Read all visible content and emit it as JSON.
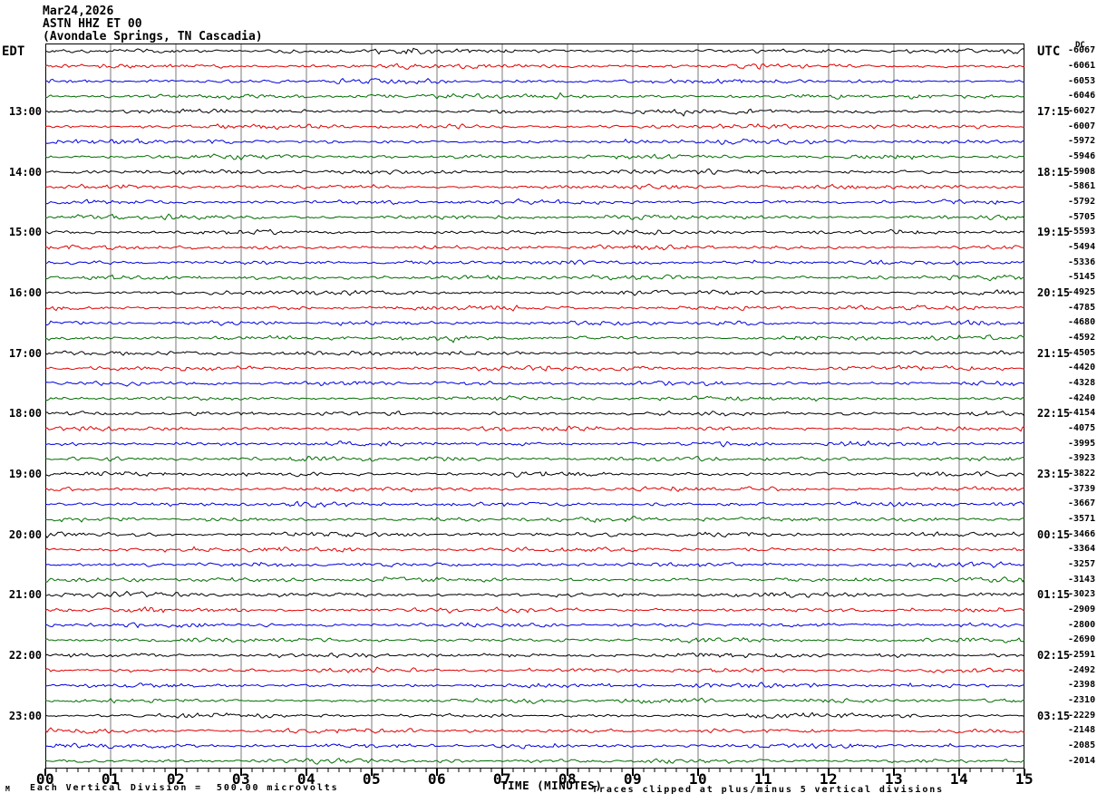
{
  "title": {
    "line1": "Mar24,2026",
    "line2": "ASTN HHZ ET 00",
    "line3": "(Avondale Springs, TN Cascadia)"
  },
  "axes": {
    "left_header": "EDT",
    "right_header": "UTC",
    "dc_header": "DC",
    "x_title": "TIME (MINUTES)",
    "x_ticks": [
      "00",
      "01",
      "02",
      "03",
      "04",
      "05",
      "06",
      "07",
      "08",
      "09",
      "10",
      "11",
      "12",
      "13",
      "14",
      "15"
    ]
  },
  "footer": {
    "watermark": "M",
    "scale_note": "Each Vertical Division =  500.00 microvolts",
    "clip_note": "Traces clipped at plus/minus 5 vertical divisions"
  },
  "colors": {
    "black": "#000000",
    "red": "#e00000",
    "blue": "#0000dd",
    "green": "#006e00",
    "grid": "#7a7a7a",
    "border": "#000000"
  },
  "chart_data": {
    "type": "line",
    "title": "ASTN HHZ ET 00 (Avondale Springs, TN Cascadia) helicorder seismogram, Mar24,2026",
    "xlabel": "TIME (MINUTES)",
    "x_range_minutes": [
      0,
      15
    ],
    "minutes_per_line": 15,
    "vertical_division_microvolts": 500.0,
    "clip_divisions": 5,
    "rows": [
      {
        "edt": "",
        "utc": "",
        "color": "black",
        "dc": -6067
      },
      {
        "edt": "",
        "utc": "",
        "color": "red",
        "dc": -6061
      },
      {
        "edt": "",
        "utc": "",
        "color": "blue",
        "dc": -6053
      },
      {
        "edt": "",
        "utc": "",
        "color": "green",
        "dc": -6046
      },
      {
        "edt": "13:00",
        "utc": "17:15",
        "color": "black",
        "dc": -6027
      },
      {
        "edt": "",
        "utc": "",
        "color": "red",
        "dc": -6007
      },
      {
        "edt": "",
        "utc": "",
        "color": "blue",
        "dc": -5972
      },
      {
        "edt": "",
        "utc": "",
        "color": "green",
        "dc": -5946
      },
      {
        "edt": "14:00",
        "utc": "18:15",
        "color": "black",
        "dc": -5908
      },
      {
        "edt": "",
        "utc": "",
        "color": "red",
        "dc": -5861
      },
      {
        "edt": "",
        "utc": "",
        "color": "blue",
        "dc": -5792
      },
      {
        "edt": "",
        "utc": "",
        "color": "green",
        "dc": -5705
      },
      {
        "edt": "15:00",
        "utc": "19:15",
        "color": "black",
        "dc": -5593
      },
      {
        "edt": "",
        "utc": "",
        "color": "red",
        "dc": -5494
      },
      {
        "edt": "",
        "utc": "",
        "color": "blue",
        "dc": -5336
      },
      {
        "edt": "",
        "utc": "",
        "color": "green",
        "dc": -5145
      },
      {
        "edt": "16:00",
        "utc": "20:15",
        "color": "black",
        "dc": -4925
      },
      {
        "edt": "",
        "utc": "",
        "color": "red",
        "dc": -4785
      },
      {
        "edt": "",
        "utc": "",
        "color": "blue",
        "dc": -4680
      },
      {
        "edt": "",
        "utc": "",
        "color": "green",
        "dc": -4592
      },
      {
        "edt": "17:00",
        "utc": "21:15",
        "color": "black",
        "dc": -4505
      },
      {
        "edt": "",
        "utc": "",
        "color": "red",
        "dc": -4420
      },
      {
        "edt": "",
        "utc": "",
        "color": "blue",
        "dc": -4328
      },
      {
        "edt": "",
        "utc": "",
        "color": "green",
        "dc": -4240
      },
      {
        "edt": "18:00",
        "utc": "22:15",
        "color": "black",
        "dc": -4154
      },
      {
        "edt": "",
        "utc": "",
        "color": "red",
        "dc": -4075
      },
      {
        "edt": "",
        "utc": "",
        "color": "blue",
        "dc": -3995
      },
      {
        "edt": "",
        "utc": "",
        "color": "green",
        "dc": -3923
      },
      {
        "edt": "19:00",
        "utc": "23:15",
        "color": "black",
        "dc": -3822
      },
      {
        "edt": "",
        "utc": "",
        "color": "red",
        "dc": -3739
      },
      {
        "edt": "",
        "utc": "",
        "color": "blue",
        "dc": -3667
      },
      {
        "edt": "",
        "utc": "",
        "color": "green",
        "dc": -3571
      },
      {
        "edt": "20:00",
        "utc": "00:15",
        "color": "black",
        "dc": -3466
      },
      {
        "edt": "",
        "utc": "",
        "color": "red",
        "dc": -3364
      },
      {
        "edt": "",
        "utc": "",
        "color": "blue",
        "dc": -3257
      },
      {
        "edt": "",
        "utc": "",
        "color": "green",
        "dc": -3143
      },
      {
        "edt": "21:00",
        "utc": "01:15",
        "color": "black",
        "dc": -3023
      },
      {
        "edt": "",
        "utc": "",
        "color": "red",
        "dc": -2909
      },
      {
        "edt": "",
        "utc": "",
        "color": "blue",
        "dc": -2800
      },
      {
        "edt": "",
        "utc": "",
        "color": "green",
        "dc": -2690
      },
      {
        "edt": "22:00",
        "utc": "02:15",
        "color": "black",
        "dc": -2591
      },
      {
        "edt": "",
        "utc": "",
        "color": "red",
        "dc": -2492
      },
      {
        "edt": "",
        "utc": "",
        "color": "blue",
        "dc": -2398
      },
      {
        "edt": "",
        "utc": "",
        "color": "green",
        "dc": -2310
      },
      {
        "edt": "23:00",
        "utc": "03:15",
        "color": "black",
        "dc": -2229
      },
      {
        "edt": "",
        "utc": "",
        "color": "red",
        "dc": -2148
      },
      {
        "edt": "",
        "utc": "",
        "color": "blue",
        "dc": -2085
      },
      {
        "edt": "",
        "utc": "",
        "color": "green",
        "dc": -2014
      }
    ]
  }
}
